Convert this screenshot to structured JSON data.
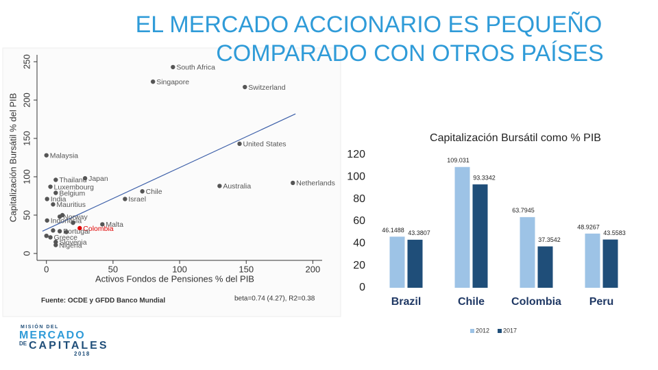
{
  "title": "EL MERCADO ACCIONARIO ES PEQUEÑO COMPARADO CON OTROS PAÍSES",
  "logo": {
    "line1": "MISIÓN DEL",
    "line2": "MERCADO",
    "line3": "DE",
    "line4": "CAPITALES",
    "line5": "2018"
  },
  "chart_data": [
    {
      "type": "scatter",
      "x_label": "Activos Fondos de Pensiones % del PIB",
      "y_label": "Capitalización Bursátil % del PIB",
      "source": "Fuente: OCDE y GFDD Banco Mundial",
      "annotation": "beta=0.74 (4.27), R2=0.38",
      "xlim": [
        -5,
        207
      ],
      "ylim": [
        -9,
        259
      ],
      "xticks": [
        0,
        50,
        100,
        150,
        200
      ],
      "yticks": [
        0,
        50,
        100,
        150,
        200,
        250
      ],
      "x": [
        95,
        80,
        149,
        145,
        0,
        185,
        130,
        72,
        59,
        29,
        7,
        3,
        7,
        0.5,
        5,
        10,
        0.5,
        42,
        25,
        10,
        3,
        7,
        7,
        0,
        15,
        20,
        5,
        12
      ],
      "y": [
        243,
        224,
        217,
        143,
        128,
        92,
        88,
        81,
        71,
        98,
        96,
        87,
        79,
        71,
        64,
        48,
        43,
        38,
        33,
        29,
        21,
        15,
        11,
        23,
        28,
        40,
        30,
        50
      ],
      "labels": [
        "South Africa",
        "Singapore",
        "Switzerland",
        "United States",
        "Malaysia",
        "Netherlands",
        "Australia",
        "Chile",
        "Israel",
        "Japan",
        "Thailand",
        "Luxembourg",
        "Belgium",
        "India",
        "Mauritius",
        "Norway",
        "Indonesia",
        "Malta",
        "Colombia",
        "Portugal",
        "Greece",
        "Slovenia",
        "Nigeria",
        null,
        null,
        null,
        null,
        null
      ],
      "colors": [
        "#555555",
        "#555555",
        "#555555",
        "#555555",
        "#555555",
        "#555555",
        "#555555",
        "#555555",
        "#555555",
        "#555555",
        "#555555",
        "#555555",
        "#555555",
        "#555555",
        "#555555",
        "#555555",
        "#555555",
        "#555555",
        "#e00000",
        "#555555",
        "#555555",
        "#555555",
        "#555555",
        "#555555",
        "#555555",
        "#555555",
        "#555555",
        "#555555"
      ],
      "trendline": {
        "x": [
          -3,
          187
        ],
        "y": [
          29,
          182
        ],
        "color": "#3b5ea8"
      }
    },
    {
      "type": "bar",
      "title": "Capitalización Bursátil como % PIB",
      "categories": [
        "Brazil",
        "Chile",
        "Colombia",
        "Peru"
      ],
      "series": [
        {
          "name": "2012",
          "color": "#9dc3e6",
          "values": [
            46.1488,
            109.031,
            63.7945,
            48.9267
          ]
        },
        {
          "name": "2017",
          "color": "#1f4e79",
          "values": [
            43.3807,
            93.3342,
            37.3542,
            43.5583
          ]
        }
      ],
      "ylim": [
        0,
        120
      ],
      "yticks": [
        0,
        20,
        40,
        60,
        80,
        100,
        120
      ]
    }
  ]
}
